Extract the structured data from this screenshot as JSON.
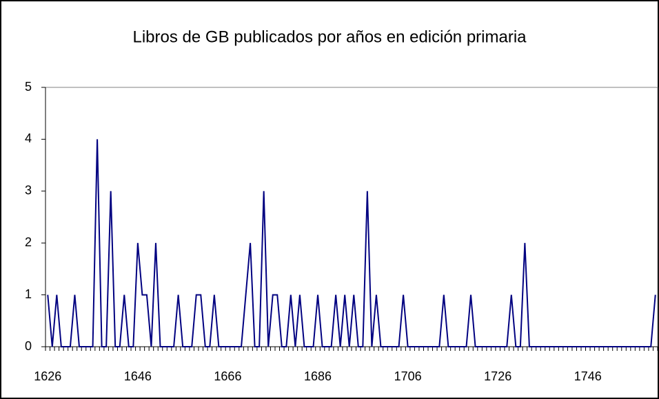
{
  "chart_data": {
    "type": "line",
    "title": "Libros de GB publicados por años en edición primaria",
    "categories": [
      "1626",
      null,
      null,
      null,
      null,
      null,
      null,
      null,
      null,
      null,
      null,
      null,
      null,
      null,
      null,
      null,
      null,
      null,
      null,
      null,
      "1646",
      null,
      null,
      null,
      null,
      null,
      null,
      null,
      null,
      null,
      null,
      null,
      null,
      null,
      null,
      null,
      null,
      null,
      null,
      null,
      "1666",
      null,
      null,
      null,
      null,
      null,
      null,
      null,
      null,
      null,
      null,
      null,
      null,
      null,
      null,
      null,
      null,
      null,
      null,
      null,
      "1686",
      null,
      null,
      null,
      null,
      null,
      null,
      null,
      null,
      null,
      null,
      null,
      null,
      null,
      null,
      null,
      null,
      null,
      null,
      null,
      "1706",
      null,
      null,
      null,
      null,
      null,
      null,
      null,
      null,
      null,
      null,
      null,
      null,
      null,
      null,
      null,
      null,
      null,
      null,
      null,
      "1726",
      null,
      null,
      null,
      null,
      null,
      null,
      null,
      null,
      null,
      null,
      null,
      null,
      null,
      null,
      null,
      null,
      null,
      null,
      null,
      "1746",
      null,
      null,
      null,
      null,
      null,
      null,
      null,
      null,
      null,
      null,
      null,
      null,
      null,
      null,
      null
    ],
    "values": [
      1,
      0,
      1,
      0,
      0,
      0,
      1,
      0,
      0,
      0,
      0,
      4,
      0,
      0,
      3,
      0,
      0,
      1,
      0,
      0,
      2,
      1,
      1,
      0,
      2,
      0,
      0,
      0,
      0,
      1,
      0,
      0,
      0,
      1,
      1,
      0,
      0,
      1,
      0,
      0,
      0,
      0,
      0,
      0,
      1,
      2,
      0,
      0,
      3,
      0,
      1,
      1,
      0,
      0,
      1,
      0,
      1,
      0,
      0,
      0,
      1,
      0,
      0,
      0,
      1,
      0,
      1,
      0,
      1,
      0,
      0,
      3,
      0,
      1,
      0,
      0,
      0,
      0,
      0,
      1,
      0,
      0,
      0,
      0,
      0,
      0,
      0,
      0,
      1,
      0,
      0,
      0,
      0,
      0,
      1,
      0,
      0,
      0,
      0,
      0,
      0,
      0,
      0,
      1,
      0,
      0,
      2,
      0,
      0,
      0,
      0,
      0,
      0,
      0,
      0,
      0,
      0,
      0,
      0,
      0,
      0,
      0,
      0,
      0,
      0,
      0,
      0,
      0,
      0,
      0,
      0,
      0,
      0,
      0,
      0,
      1
    ],
    "color": "#000080",
    "ylim": [
      0,
      5
    ],
    "yticks": [
      0,
      1,
      2,
      3,
      4,
      5
    ],
    "grid": false
  }
}
